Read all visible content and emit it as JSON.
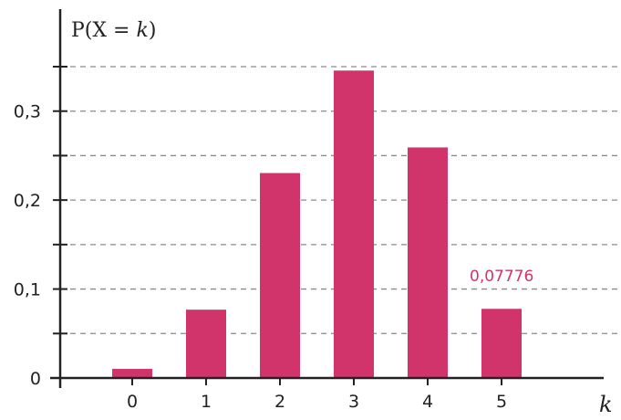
{
  "chart_data": {
    "type": "bar",
    "categories": [
      "0",
      "1",
      "2",
      "3",
      "4",
      "5"
    ],
    "values": [
      0.01024,
      0.0768,
      0.2304,
      0.3456,
      0.2592,
      0.07776
    ],
    "ylabel_parts": [
      "P(X = ",
      "k",
      ")"
    ],
    "xlabel": "k",
    "ylim": [
      0,
      0.35
    ],
    "yticks": [
      0,
      0.1,
      0.2,
      0.3
    ],
    "ytick_labels": [
      "0",
      "0,1",
      "0,2",
      "0,3"
    ],
    "minor_gridlines": [
      0.05,
      0.1,
      0.15,
      0.2,
      0.25,
      0.3,
      0.35
    ],
    "grid": "dashed horizontal",
    "bar_color": "#d1346a",
    "annotation": {
      "text": "0,07776",
      "category": "5",
      "color": "#d1346a"
    }
  }
}
